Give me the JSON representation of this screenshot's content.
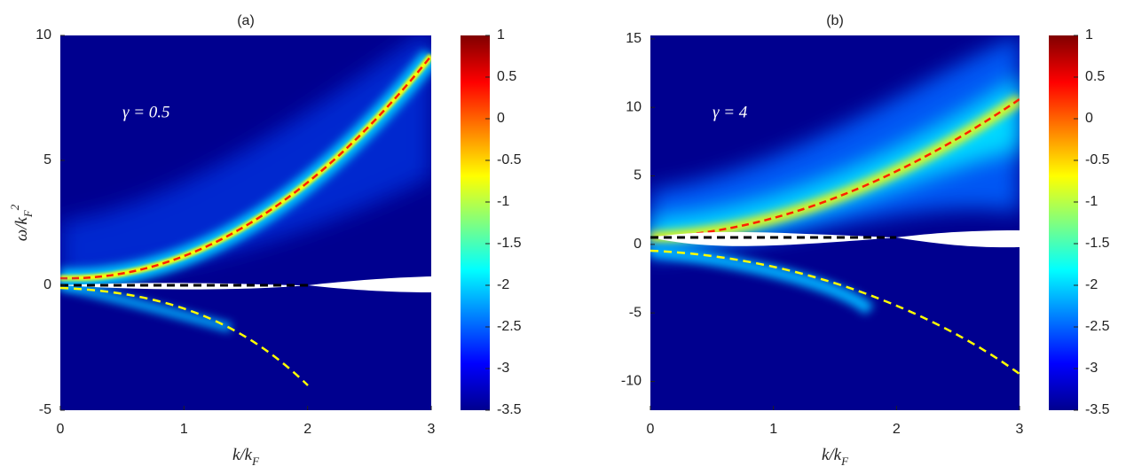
{
  "chart_data": [
    {
      "type": "heatmap",
      "title": "(a)",
      "x_label": "k/k_F",
      "y_label": "ω/k_F^2",
      "annotation": "γ = 0.5",
      "xlim": [
        0,
        3
      ],
      "xticks": [
        0,
        1,
        2,
        3
      ],
      "ylim": [
        -5,
        10
      ],
      "yticks": [
        -5,
        0,
        5,
        10
      ],
      "colormap": "jet",
      "colorbar": {
        "lim": [
          -3.5,
          1
        ],
        "ticks": [
          1,
          0.5,
          0,
          -0.5,
          -1,
          -1.5,
          -2,
          -2.5,
          -3,
          -3.5
        ]
      }
    },
    {
      "type": "heatmap",
      "title": "(b)",
      "x_label": "k/k_F",
      "annotation": "γ = 4",
      "xlim": [
        0,
        3
      ],
      "xticks": [
        0,
        1,
        2,
        3
      ],
      "ylim": [
        -12.1,
        15.25
      ],
      "yticks": [
        -10,
        -5,
        0,
        5,
        10,
        15
      ],
      "colormap": "jet",
      "colorbar": {
        "lim": [
          -3.5,
          1
        ],
        "ticks": [
          1,
          0.5,
          0,
          -0.5,
          -1,
          -1.5,
          -2,
          -2.5,
          -3,
          -3.5
        ]
      }
    }
  ]
}
